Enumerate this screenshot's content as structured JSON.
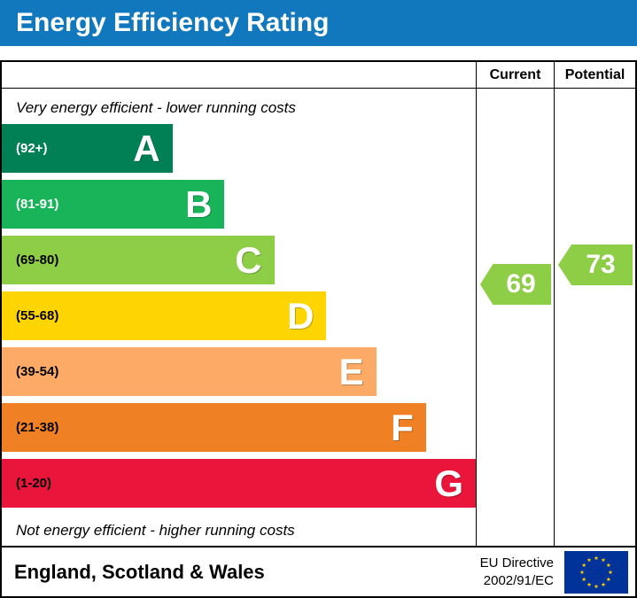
{
  "header": {
    "title": "Energy Efficiency Rating",
    "bg": "#1278be"
  },
  "columns": {
    "current": "Current",
    "potential": "Potential"
  },
  "notes": {
    "top": "Very energy efficient - lower running costs",
    "bottom": "Not energy efficient - higher running costs"
  },
  "chart_data": {
    "type": "bar",
    "subtype": "epc-energy-efficiency-rating",
    "title": "Energy Efficiency Rating",
    "bands": [
      {
        "letter": "A",
        "range": "(92+)",
        "range_min": 92,
        "range_max": 100,
        "color": "#008054",
        "range_text_color": "#ffffff",
        "width_pct": 36
      },
      {
        "letter": "B",
        "range": "(81-91)",
        "range_min": 81,
        "range_max": 91,
        "color": "#19b459",
        "range_text_color": "#ffffff",
        "width_pct": 47
      },
      {
        "letter": "C",
        "range": "(69-80)",
        "range_min": 69,
        "range_max": 80,
        "color": "#8dce46",
        "range_text_color": "#000000",
        "width_pct": 57.5
      },
      {
        "letter": "D",
        "range": "(55-68)",
        "range_min": 55,
        "range_max": 68,
        "color": "#ffd500",
        "range_text_color": "#000000",
        "width_pct": 68.5
      },
      {
        "letter": "E",
        "range": "(39-54)",
        "range_min": 39,
        "range_max": 54,
        "color": "#fcaa65",
        "range_text_color": "#000000",
        "width_pct": 79
      },
      {
        "letter": "F",
        "range": "(21-38)",
        "range_min": 21,
        "range_max": 38,
        "color": "#ef8023",
        "range_text_color": "#000000",
        "width_pct": 89.5
      },
      {
        "letter": "G",
        "range": "(1-20)",
        "range_min": 1,
        "range_max": 20,
        "color": "#e9153b",
        "range_text_color": "#000000",
        "width_pct": 100
      }
    ],
    "current": {
      "label": "Current",
      "value": 69,
      "band": "C",
      "arrow_color": "#8dce46"
    },
    "potential": {
      "label": "Potential",
      "value": 73,
      "band": "C",
      "arrow_color": "#8dce46"
    }
  },
  "footer": {
    "region": "England, Scotland & Wales",
    "directive_line1": "EU Directive",
    "directive_line2": "2002/91/EC",
    "flag_colors": {
      "field": "#003399",
      "stars": "#ffcc00"
    }
  }
}
